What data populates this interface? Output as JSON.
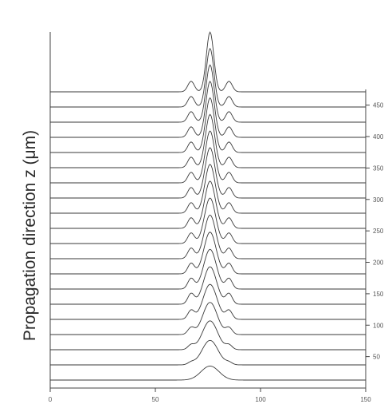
{
  "chart_data": {
    "type": "line",
    "title": "",
    "xlabel": "",
    "ylabel": "Propagation direction z (μm)",
    "x_ticks": [
      0,
      50,
      100,
      150
    ],
    "xlim": [
      0,
      150
    ],
    "y_ticks_right": [
      50,
      100,
      150,
      200,
      250,
      300,
      350,
      400,
      450
    ],
    "zlim": [
      0,
      475
    ],
    "num_profiles": 20,
    "profile_spacing_um": 25,
    "beam": {
      "center_x": 76,
      "input_peak_width_um": 6,
      "input_amplitude": 0.8,
      "output_peak_width_um": 2.5,
      "output_amplitude": 3.4,
      "side_lobe_offset_um": 9,
      "side_lobe_amplitude": 0.6
    },
    "grid": false,
    "legend": "none"
  }
}
